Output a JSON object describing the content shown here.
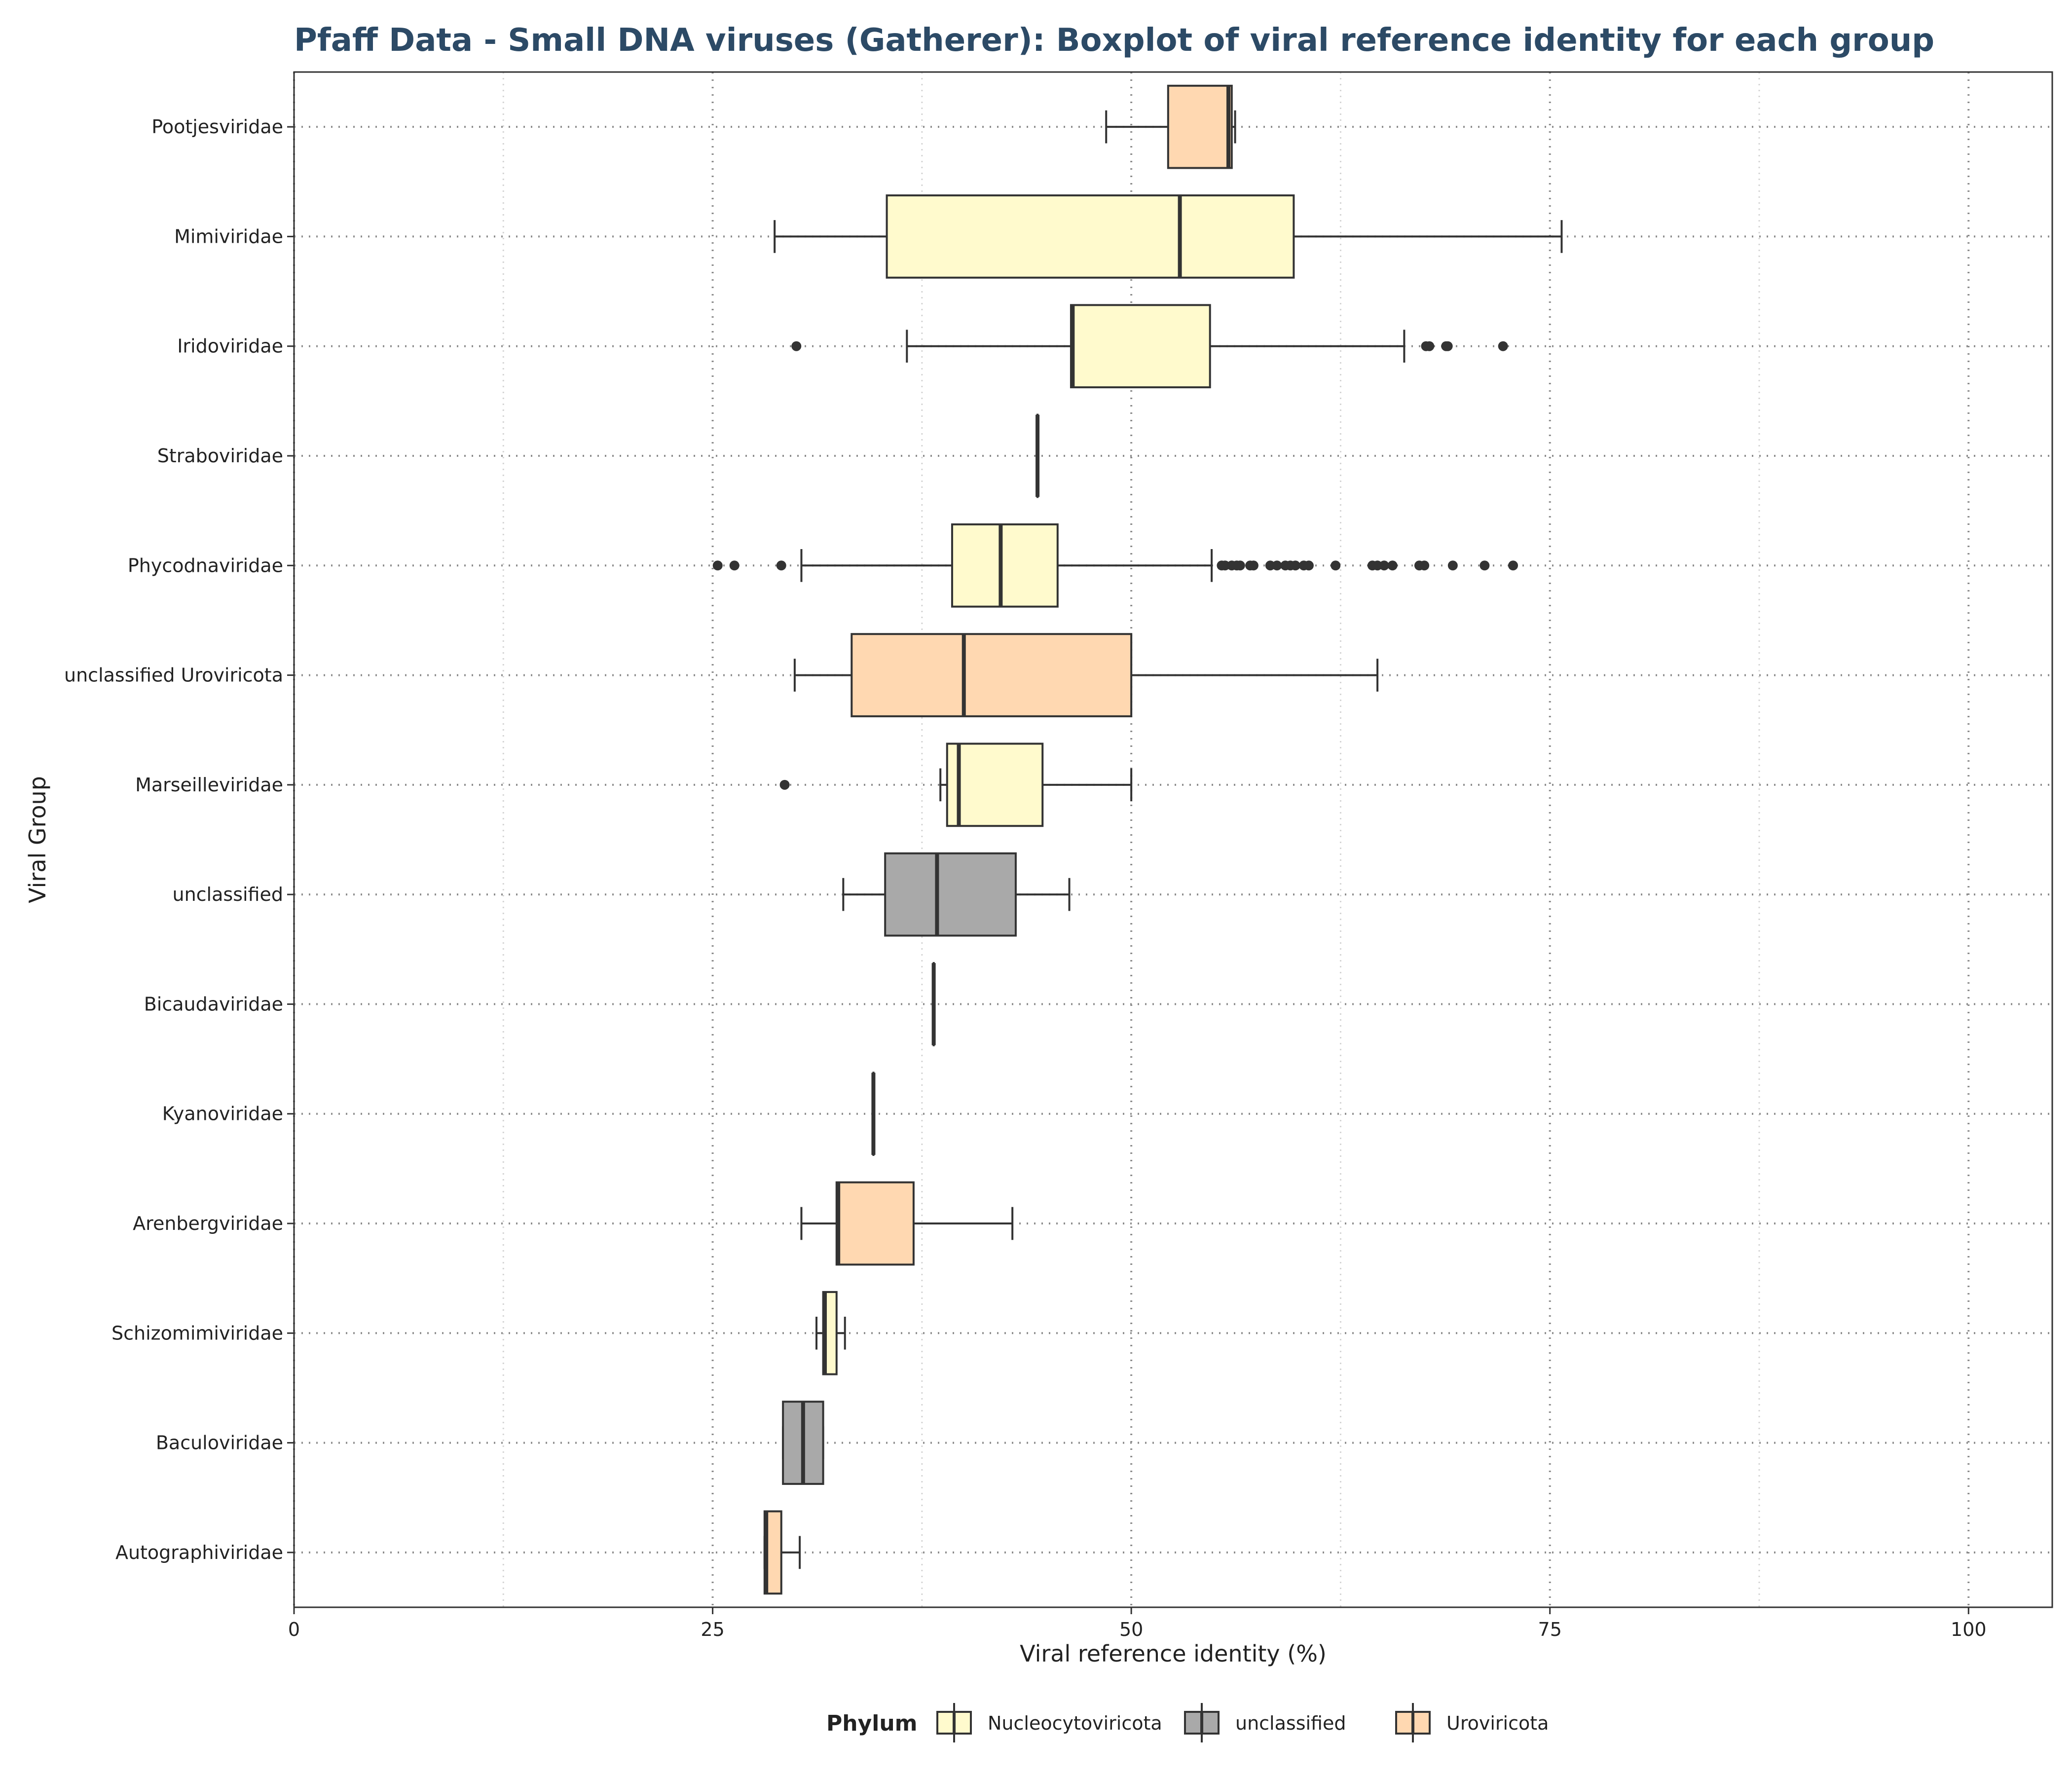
{
  "chart_data": {
    "type": "boxplot",
    "title": "Pfaff Data - Small DNA viruses (Gatherer): Boxplot of viral reference identity for each group",
    "xlabel": "Viral reference identity (%)",
    "ylabel": "Viral Group",
    "xlim": [
      0,
      105
    ],
    "xticks": [
      0,
      25,
      50,
      75,
      100
    ],
    "orientation": "horizontal",
    "legend": {
      "title": "Phylum",
      "position": "bottom",
      "entries": [
        {
          "name": "Nucleocytoviricota",
          "color": "#fffacd"
        },
        {
          "name": "unclassified",
          "color": "#a9a9a9"
        },
        {
          "name": "Uroviricota",
          "color": "#ffd8b1"
        }
      ]
    },
    "groups": [
      {
        "name": "Pootjesviridae",
        "phylum": "Uroviricota",
        "min": 48.5,
        "q1": 52.2,
        "median": 55.8,
        "q3": 56.0,
        "max": 56.2,
        "outliers": []
      },
      {
        "name": "Mimiviridae",
        "phylum": "Nucleocytoviricota",
        "min": 28.7,
        "q1": 35.4,
        "median": 52.9,
        "q3": 59.7,
        "max": 75.7,
        "outliers": []
      },
      {
        "name": "Iridoviridae",
        "phylum": "Nucleocytoviricota",
        "min": 36.6,
        "q1": 46.4,
        "median": 46.5,
        "q3": 54.7,
        "max": 66.3,
        "outliers": [
          30.0,
          67.6,
          67.8,
          68.8,
          68.9,
          72.2
        ]
      },
      {
        "name": "Straboviridae",
        "phylum": "Uroviricota",
        "min": 44.4,
        "q1": 44.4,
        "median": 44.4,
        "q3": 44.4,
        "max": 44.4,
        "outliers": []
      },
      {
        "name": "Phycodnaviridae",
        "phylum": "Nucleocytoviricota",
        "min": 30.3,
        "q1": 39.3,
        "median": 42.2,
        "q3": 45.6,
        "max": 54.8,
        "outliers": [
          25.3,
          26.3,
          29.1,
          55.4,
          55.6,
          56.0,
          56.3,
          56.5,
          57.1,
          57.3,
          58.3,
          58.7,
          59.2,
          59.5,
          59.8,
          60.3,
          60.6,
          62.2,
          64.4,
          64.7,
          65.1,
          65.6,
          67.2,
          67.5,
          69.2,
          71.1,
          72.8
        ]
      },
      {
        "name": "unclassified Uroviricota",
        "phylum": "Uroviricota",
        "min": 29.9,
        "q1": 33.3,
        "median": 40.0,
        "q3": 50.0,
        "max": 64.7,
        "outliers": []
      },
      {
        "name": "Marseilleviridae",
        "phylum": "Nucleocytoviricota",
        "min": 38.6,
        "q1": 39.0,
        "median": 39.7,
        "q3": 44.7,
        "max": 50.0,
        "outliers": [
          29.3
        ]
      },
      {
        "name": "unclassified",
        "phylum": "unclassified",
        "min": 32.8,
        "q1": 35.3,
        "median": 38.4,
        "q3": 43.1,
        "max": 46.3,
        "outliers": []
      },
      {
        "name": "Bicaudaviridae",
        "phylum": "Uroviricota",
        "min": 38.2,
        "q1": 38.2,
        "median": 38.2,
        "q3": 38.2,
        "max": 38.2,
        "outliers": []
      },
      {
        "name": "Kyanoviridae",
        "phylum": "Uroviricota",
        "min": 34.6,
        "q1": 34.6,
        "median": 34.6,
        "q3": 34.6,
        "max": 34.6,
        "outliers": []
      },
      {
        "name": "Arenbergviridae",
        "phylum": "Uroviricota",
        "min": 30.3,
        "q1": 32.4,
        "median": 32.5,
        "q3": 37.0,
        "max": 42.9,
        "outliers": []
      },
      {
        "name": "Schizomimiviridae",
        "phylum": "Nucleocytoviricota",
        "min": 31.2,
        "q1": 31.6,
        "median": 31.7,
        "q3": 32.4,
        "max": 32.9,
        "outliers": []
      },
      {
        "name": "Baculoviridae",
        "phylum": "unclassified",
        "min": 29.2,
        "q1": 29.2,
        "median": 30.4,
        "q3": 31.6,
        "max": 31.6,
        "outliers": []
      },
      {
        "name": "Autographiviridae",
        "phylum": "Uroviricota",
        "min": 28.1,
        "q1": 28.1,
        "median": 28.2,
        "q3": 29.1,
        "max": 30.2,
        "outliers": []
      }
    ]
  }
}
